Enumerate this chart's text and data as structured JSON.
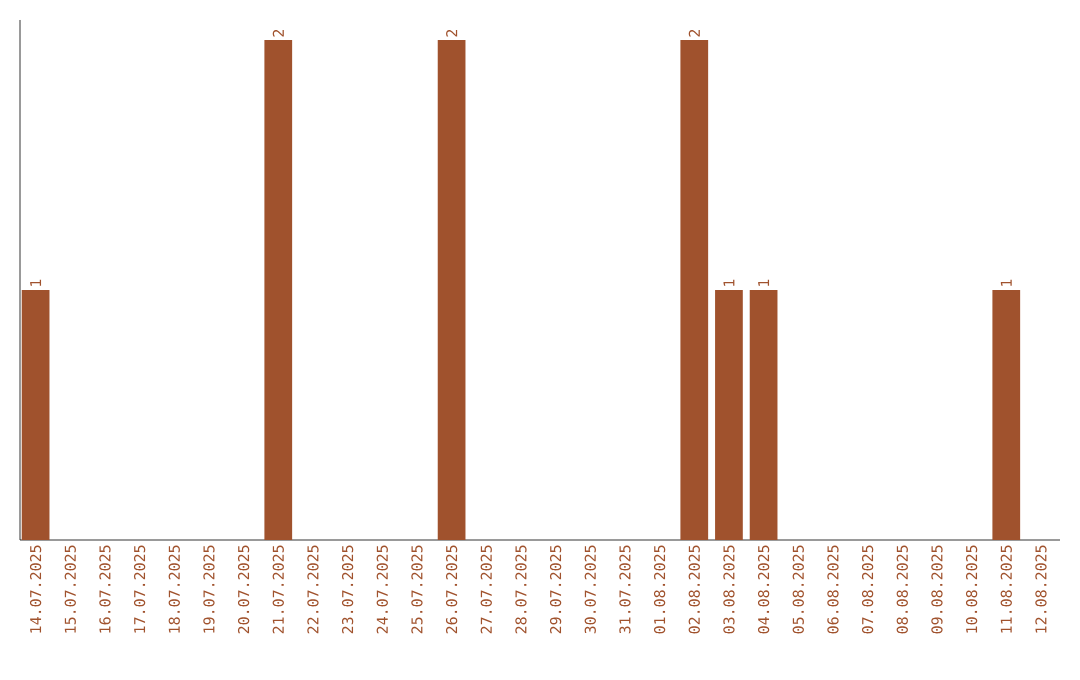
{
  "chart_data": {
    "type": "bar",
    "categories": [
      "14.07.2025",
      "15.07.2025",
      "16.07.2025",
      "17.07.2025",
      "18.07.2025",
      "19.07.2025",
      "20.07.2025",
      "21.07.2025",
      "22.07.2025",
      "23.07.2025",
      "24.07.2025",
      "25.07.2025",
      "26.07.2025",
      "27.07.2025",
      "28.07.2025",
      "29.07.2025",
      "30.07.2025",
      "31.07.2025",
      "01.08.2025",
      "02.08.2025",
      "03.08.2025",
      "04.08.2025",
      "05.08.2025",
      "06.08.2025",
      "07.08.2025",
      "08.08.2025",
      "09.08.2025",
      "10.08.2025",
      "11.08.2025",
      "12.08.2025"
    ],
    "values": [
      1,
      0,
      0,
      0,
      0,
      0,
      0,
      2,
      0,
      0,
      0,
      0,
      2,
      0,
      0,
      0,
      0,
      0,
      0,
      2,
      1,
      1,
      0,
      0,
      0,
      0,
      0,
      0,
      1,
      0
    ],
    "value_labels": [
      "1",
      null,
      null,
      null,
      null,
      null,
      null,
      "2",
      null,
      null,
      null,
      null,
      "2",
      null,
      null,
      null,
      null,
      null,
      null,
      "2",
      "1",
      "1",
      null,
      null,
      null,
      null,
      null,
      null,
      "1",
      null
    ],
    "color": "#a0522d",
    "ylim": [
      0,
      2.08
    ]
  }
}
